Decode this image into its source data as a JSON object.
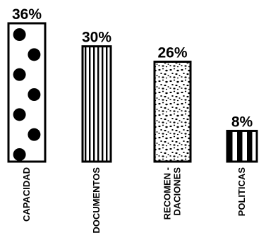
{
  "chart_data": {
    "type": "bar",
    "title": "",
    "xlabel": "",
    "ylabel": "",
    "ylim": [
      0,
      36
    ],
    "grid": false,
    "categories": [
      [
        "CAPACIDAD"
      ],
      [
        "DOCUMENTOS"
      ],
      [
        "RECOMEN -",
        "DACIONES"
      ],
      [
        "POLITICAS"
      ]
    ],
    "values": [
      36,
      30,
      26,
      8
    ],
    "value_labels": [
      "36%",
      "30%",
      "26%",
      "8%"
    ],
    "patterns": [
      "dots",
      "vertical-lines",
      "speckle",
      "wide-stripes"
    ]
  }
}
